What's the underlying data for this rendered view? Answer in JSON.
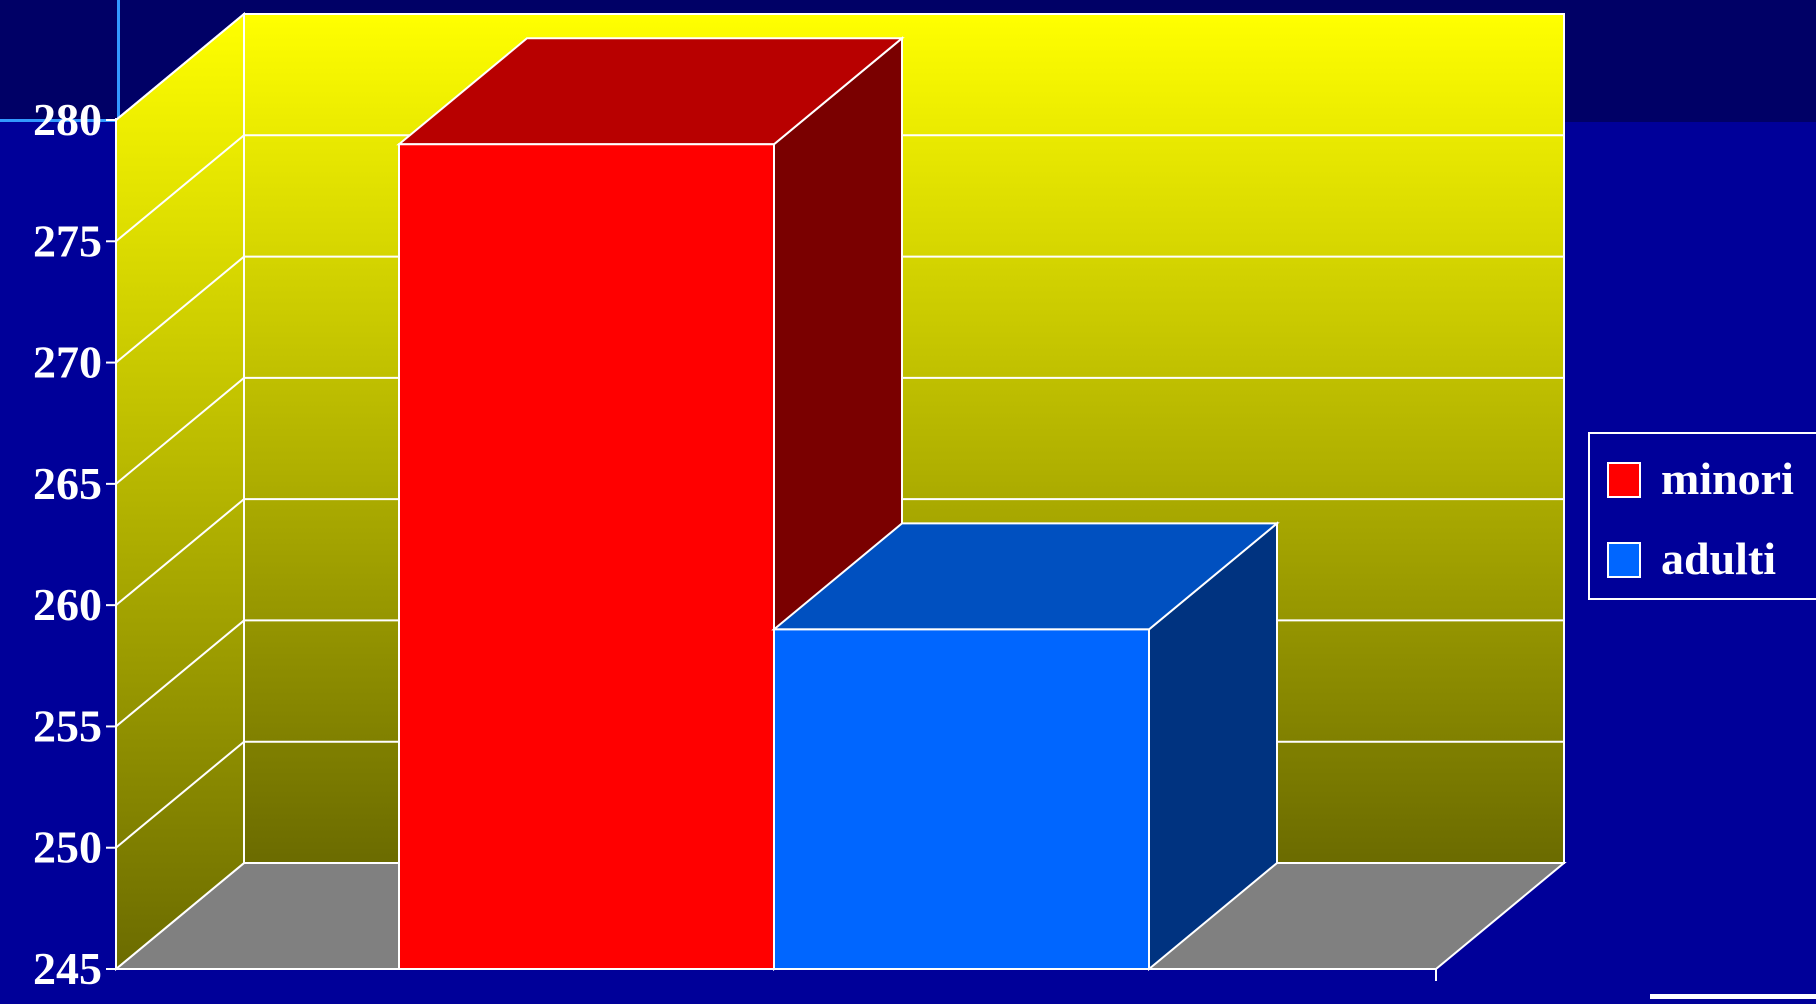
{
  "chart_data": {
    "type": "bar",
    "style": "3d-clustered-column",
    "categories": [
      ""
    ],
    "series": [
      {
        "name": "minori",
        "values": [
          279
        ],
        "color": "#FF0000",
        "top_color": "#B80000",
        "side_color": "#7A0000"
      },
      {
        "name": "adulti",
        "values": [
          259
        ],
        "color": "#0066FF",
        "top_color": "#0050C0",
        "side_color": "#003380"
      }
    ],
    "ylim": [
      245,
      280
    ],
    "yticks": [
      "245",
      "250",
      "255",
      "260",
      "265",
      "270",
      "275",
      "280"
    ],
    "grid": true,
    "legend_position": "right",
    "wall_gradient": [
      "#FFFF00",
      "#6B6B00"
    ],
    "floor_color": "#808080",
    "background_color": "#000099",
    "banner_color": "#000066"
  }
}
